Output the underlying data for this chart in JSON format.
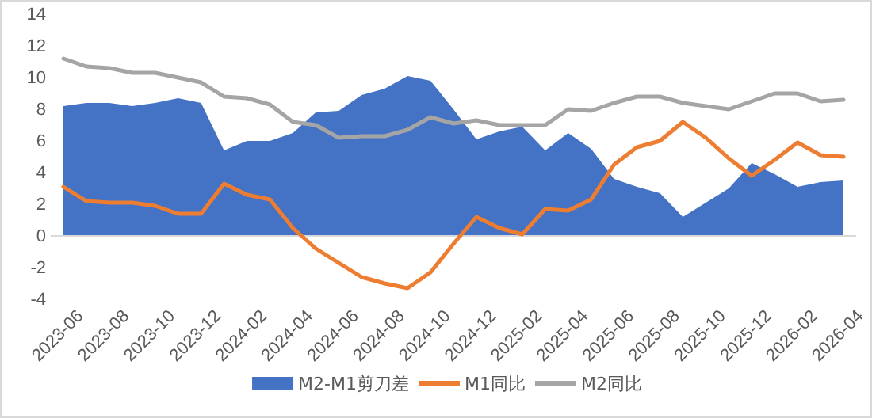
{
  "chart_data": {
    "type": "line",
    "categories": [
      "2023-06",
      null,
      "2023-08",
      null,
      "2023-10",
      null,
      "2023-12",
      null,
      "2024-02",
      null,
      "2024-04",
      null,
      "2024-06",
      null,
      "2024-08",
      null,
      "2024-10",
      null,
      "2024-12",
      null,
      "2025-02",
      null,
      "2025-04",
      null,
      "2025-06",
      null,
      "2025-08",
      null,
      "2025-10",
      null,
      "2025-12",
      null,
      "2026-02",
      null,
      "2026-04"
    ],
    "ylim": [
      -4,
      14
    ],
    "yticks": [
      -4,
      -2,
      0,
      2,
      4,
      6,
      8,
      10,
      12,
      14
    ],
    "legend": "bottom",
    "line_style": "solid",
    "marker": "none",
    "series": [
      {
        "name": "M2-M1剪刀差",
        "type": "area",
        "color": "#4472c4",
        "values": [
          8.2,
          8.4,
          8.4,
          8.2,
          8.4,
          8.7,
          8.4,
          5.4,
          6.0,
          6.0,
          6.5,
          7.8,
          7.9,
          8.9,
          9.3,
          10.1,
          9.8,
          8.0,
          6.1,
          6.6,
          6.9,
          5.4,
          6.5,
          5.5,
          3.6,
          3.1,
          2.7,
          1.2,
          2.1,
          3.0,
          4.6,
          3.9,
          3.1,
          3.4,
          3.5
        ]
      },
      {
        "name": "M1同比",
        "color": "#ed7d31",
        "values": [
          3.1,
          2.2,
          2.1,
          2.1,
          1.9,
          1.4,
          1.4,
          3.3,
          2.6,
          2.3,
          0.5,
          -0.8,
          -1.7,
          -2.6,
          -3.0,
          -3.3,
          -2.3,
          -0.5,
          1.2,
          0.5,
          0.1,
          1.7,
          1.6,
          2.3,
          4.5,
          5.6,
          6.0,
          7.2,
          6.2,
          4.9,
          3.8,
          4.8,
          5.9,
          5.1,
          5.0
        ]
      },
      {
        "name": "M2同比",
        "color": "#a5a5a5",
        "values": [
          11.2,
          10.7,
          10.6,
          10.3,
          10.3,
          10.0,
          9.7,
          8.8,
          8.7,
          8.3,
          7.2,
          7.0,
          6.2,
          6.3,
          6.3,
          6.7,
          7.5,
          7.1,
          7.3,
          7.0,
          7.0,
          7.0,
          8.0,
          7.9,
          8.4,
          8.8,
          8.8,
          8.4,
          8.2,
          8.0,
          8.5,
          9.0,
          9.0,
          8.5,
          8.6
        ]
      }
    ]
  }
}
